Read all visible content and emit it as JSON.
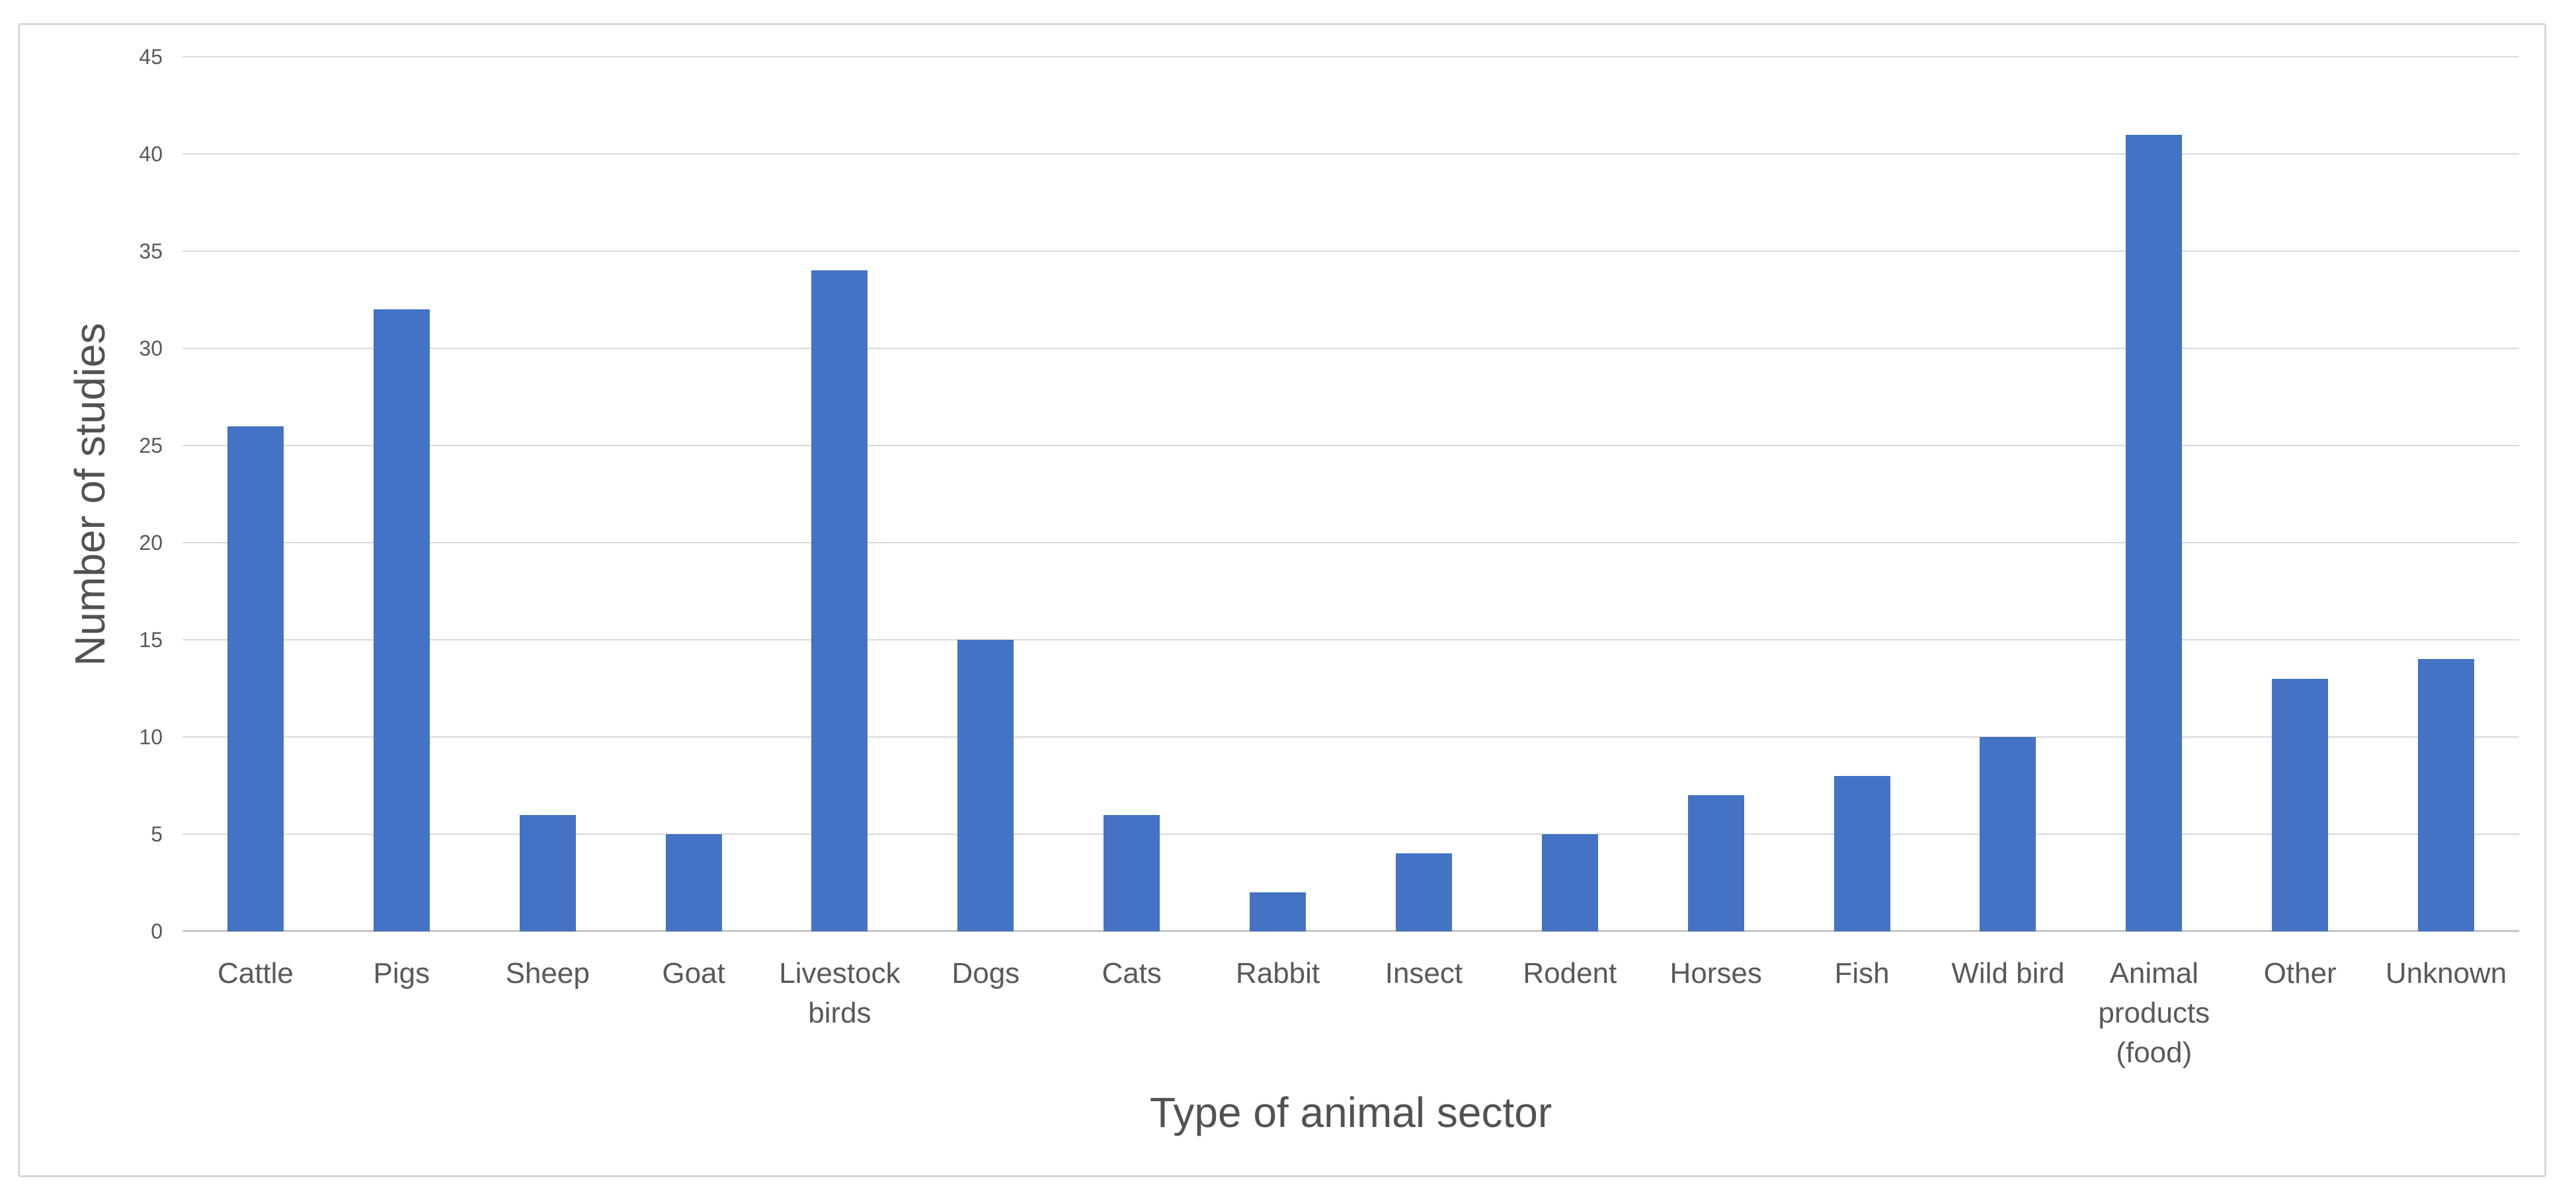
{
  "chart_data": {
    "type": "bar",
    "categories": [
      "Cattle",
      "Pigs",
      "Sheep",
      "Goat",
      "Livestock birds",
      "Dogs",
      "Cats",
      "Rabbit",
      "Insect",
      "Rodent",
      "Horses",
      "Fish",
      "Wild bird",
      "Animal products (food)",
      "Other",
      "Unknown"
    ],
    "values": [
      26,
      32,
      6,
      5,
      34,
      15,
      6,
      2,
      4,
      5,
      7,
      8,
      10,
      41,
      13,
      14
    ],
    "title": "",
    "xlabel": "Type of animal sector",
    "ylabel": "Number of studies",
    "yticks": [
      0,
      5,
      10,
      15,
      20,
      25,
      30,
      35,
      40,
      45
    ],
    "ylim": [
      0,
      45
    ],
    "grid": "horizontal",
    "legend": "none",
    "bar_color": "#4472c4",
    "gridline_color": "#d9d9d9",
    "axis_line_color": "#c6c6c6",
    "tick_text_color": "#595959",
    "title_text_color": "#525252",
    "background_color": "#ffffff",
    "border_color": "#d8d8d8"
  }
}
